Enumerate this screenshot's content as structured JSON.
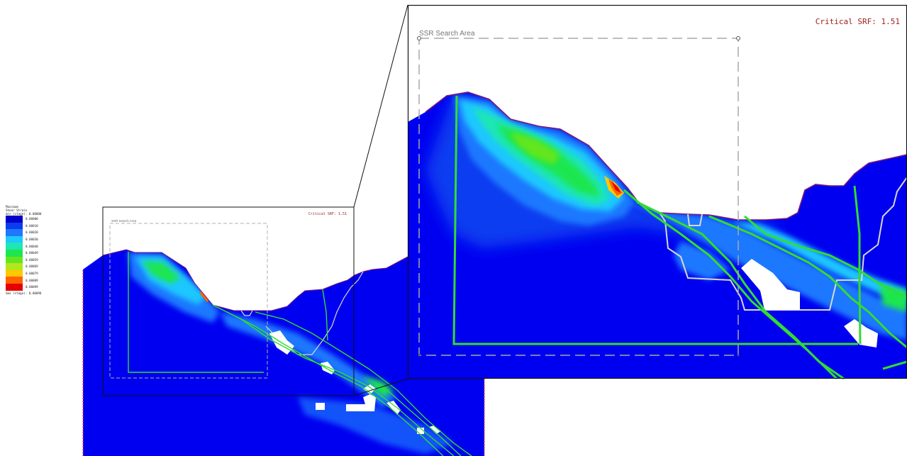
{
  "legend": {
    "title_line1": "Maximum",
    "title_line2": "Shear Strain",
    "min_label": "min (stage): 0.00000",
    "max_label": "max (stage): 0.00098",
    "entries": [
      {
        "value": "0.00000",
        "color": "#0000c8"
      },
      {
        "value": "0.00010",
        "color": "#0a3cf0"
      },
      {
        "value": "0.00020",
        "color": "#1e78ff"
      },
      {
        "value": "0.00030",
        "color": "#1ec8ff"
      },
      {
        "value": "0.00040",
        "color": "#1ee6b4"
      },
      {
        "value": "0.00049",
        "color": "#1ee650"
      },
      {
        "value": "0.00059",
        "color": "#64e61e"
      },
      {
        "value": "0.00069",
        "color": "#b4e61e"
      },
      {
        "value": "0.00079",
        "color": "#ffc800"
      },
      {
        "value": "0.00089",
        "color": "#ff6400"
      },
      {
        "value": "0.00099",
        "color": "#e60000"
      }
    ]
  },
  "overview": {
    "ssr_label": "SSR Search Area",
    "critical_srf": "Critical SRF: 1.51"
  },
  "zoom": {
    "ssr_label": "SSR Search Area",
    "critical_srf": "Critical SRF: 1.51"
  }
}
